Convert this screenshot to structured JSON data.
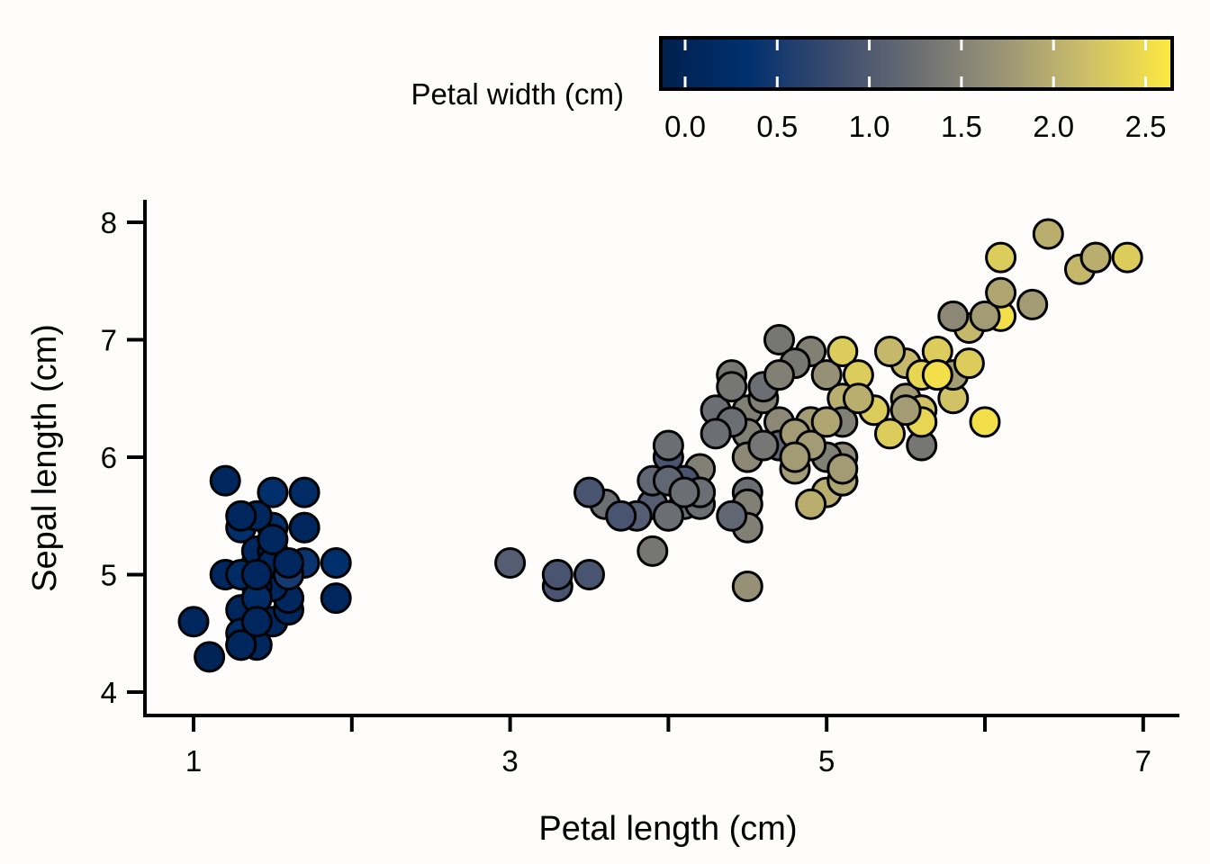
{
  "chart_data": {
    "type": "scatter",
    "xlabel": "Petal length (cm)",
    "ylabel": "Sepal length (cm)",
    "xlim": [
      0.7,
      7.3
    ],
    "ylim": [
      3.8,
      8.2
    ],
    "xticks": [
      1,
      2,
      3,
      4,
      5,
      6,
      7
    ],
    "xtick_labels": [
      "1",
      "",
      "3",
      "",
      "5",
      "",
      "7"
    ],
    "yticks": [
      4,
      5,
      6,
      7,
      8
    ],
    "ytick_labels": [
      "4",
      "5",
      "6",
      "7",
      "8"
    ],
    "grid": false,
    "color_scale": {
      "title": "Petal width (cm)",
      "min": 0.0,
      "max": 2.6,
      "ticks": [
        0.0,
        0.5,
        1.0,
        1.5,
        2.0,
        2.5
      ],
      "tick_labels": [
        "0.0",
        "0.5",
        "1.0",
        "1.5",
        "2.0",
        "2.5"
      ],
      "colors": [
        "#00204d",
        "#00306f",
        "#3a4a6e",
        "#6b6e73",
        "#9a9476",
        "#cdbf69",
        "#fde940"
      ],
      "placement": "top-right"
    },
    "x": [
      1.4,
      1.4,
      1.3,
      1.5,
      1.4,
      1.7,
      1.4,
      1.5,
      1.4,
      1.5,
      1.5,
      1.6,
      1.4,
      1.1,
      1.2,
      1.5,
      1.3,
      1.4,
      1.7,
      1.5,
      1.7,
      1.5,
      1.0,
      1.7,
      1.9,
      1.6,
      1.6,
      1.5,
      1.4,
      1.6,
      1.6,
      1.5,
      1.5,
      1.4,
      1.5,
      1.2,
      1.3,
      1.4,
      1.3,
      1.5,
      1.3,
      1.3,
      1.3,
      1.6,
      1.9,
      1.4,
      1.6,
      1.4,
      1.5,
      1.4,
      4.7,
      4.5,
      4.9,
      4.0,
      4.6,
      4.5,
      4.7,
      3.3,
      4.6,
      3.9,
      3.5,
      4.2,
      4.0,
      4.7,
      3.6,
      4.4,
      4.5,
      4.1,
      4.5,
      3.9,
      4.8,
      4.0,
      4.9,
      4.7,
      4.3,
      4.4,
      4.8,
      5.0,
      4.5,
      3.5,
      3.8,
      3.7,
      3.9,
      5.1,
      4.5,
      4.5,
      4.7,
      4.4,
      4.1,
      4.0,
      4.4,
      4.6,
      4.0,
      3.3,
      4.2,
      4.2,
      4.2,
      4.3,
      3.0,
      4.1,
      6.0,
      5.1,
      5.9,
      5.6,
      5.8,
      6.6,
      4.5,
      6.3,
      5.8,
      6.1,
      5.1,
      5.3,
      5.5,
      5.0,
      5.1,
      5.3,
      5.5,
      6.7,
      6.9,
      5.0,
      5.7,
      4.9,
      6.7,
      4.9,
      5.7,
      6.0,
      4.8,
      4.9,
      5.6,
      5.8,
      6.1,
      6.4,
      5.6,
      5.1,
      5.6,
      6.1,
      5.6,
      5.5,
      4.8,
      5.4,
      5.6,
      5.1,
      5.1,
      5.9,
      5.7,
      5.2,
      5.0,
      5.2,
      5.4,
      5.1
    ],
    "y": [
      5.1,
      4.9,
      4.7,
      4.6,
      5.0,
      5.4,
      4.6,
      5.0,
      4.4,
      4.9,
      5.4,
      4.8,
      4.8,
      4.3,
      5.8,
      5.7,
      5.4,
      5.1,
      5.7,
      5.1,
      5.4,
      5.1,
      4.6,
      5.1,
      4.8,
      5.0,
      5.0,
      5.2,
      5.2,
      4.7,
      4.8,
      5.4,
      5.2,
      5.5,
      4.9,
      5.0,
      5.5,
      4.9,
      4.4,
      5.1,
      5.0,
      4.5,
      4.4,
      5.0,
      5.1,
      4.8,
      5.1,
      4.6,
      5.3,
      5.0,
      7.0,
      6.4,
      6.9,
      5.5,
      6.5,
      5.7,
      6.3,
      4.9,
      6.6,
      5.2,
      5.0,
      5.9,
      6.0,
      6.1,
      5.6,
      6.7,
      5.6,
      5.8,
      6.2,
      5.6,
      5.9,
      6.1,
      6.3,
      6.1,
      6.4,
      6.6,
      6.8,
      6.7,
      6.0,
      5.7,
      5.5,
      5.5,
      5.8,
      6.0,
      5.4,
      6.0,
      6.7,
      6.3,
      5.6,
      5.5,
      5.5,
      6.1,
      5.8,
      5.0,
      5.6,
      5.7,
      5.7,
      6.2,
      5.1,
      5.7,
      6.3,
      5.8,
      7.1,
      6.3,
      6.5,
      7.6,
      4.9,
      7.3,
      6.7,
      7.2,
      6.5,
      6.4,
      6.8,
      5.7,
      5.8,
      6.4,
      6.5,
      7.7,
      7.7,
      6.0,
      6.9,
      5.6,
      7.7,
      6.3,
      6.7,
      7.2,
      6.2,
      6.1,
      6.4,
      7.2,
      7.4,
      7.9,
      6.4,
      6.3,
      6.1,
      7.7,
      6.3,
      6.4,
      6.0,
      6.9,
      6.7,
      6.9,
      5.8,
      6.8,
      6.7,
      6.7,
      6.3,
      6.5,
      6.2,
      5.9
    ],
    "color_values": [
      0.2,
      0.2,
      0.2,
      0.2,
      0.2,
      0.4,
      0.3,
      0.2,
      0.2,
      0.1,
      0.2,
      0.2,
      0.1,
      0.1,
      0.2,
      0.4,
      0.4,
      0.3,
      0.3,
      0.3,
      0.2,
      0.4,
      0.2,
      0.5,
      0.2,
      0.2,
      0.4,
      0.2,
      0.2,
      0.2,
      0.2,
      0.4,
      0.1,
      0.2,
      0.2,
      0.2,
      0.2,
      0.1,
      0.2,
      0.2,
      0.3,
      0.3,
      0.2,
      0.6,
      0.4,
      0.3,
      0.2,
      0.2,
      0.2,
      0.2,
      1.4,
      1.5,
      1.5,
      1.3,
      1.5,
      1.3,
      1.6,
      1.0,
      1.3,
      1.4,
      1.0,
      1.5,
      1.0,
      1.4,
      1.3,
      1.4,
      1.5,
      1.0,
      1.5,
      1.1,
      1.8,
      1.3,
      1.5,
      1.2,
      1.3,
      1.4,
      1.4,
      1.7,
      1.5,
      1.0,
      1.1,
      1.0,
      1.2,
      1.6,
      1.5,
      1.6,
      1.5,
      1.3,
      1.3,
      1.3,
      1.2,
      1.4,
      1.2,
      1.0,
      1.3,
      1.2,
      1.3,
      1.3,
      1.1,
      1.3,
      2.5,
      1.9,
      2.1,
      1.8,
      2.2,
      2.1,
      1.7,
      1.8,
      1.8,
      2.5,
      2.0,
      1.9,
      2.1,
      2.0,
      2.4,
      2.3,
      1.8,
      2.2,
      2.3,
      1.5,
      2.3,
      2.0,
      2.0,
      1.8,
      2.1,
      1.8,
      1.8,
      1.8,
      2.1,
      1.6,
      1.9,
      2.0,
      2.2,
      1.5,
      1.4,
      2.3,
      2.4,
      1.8,
      1.8,
      2.1,
      2.4,
      2.3,
      1.9,
      2.3,
      2.5,
      2.3,
      1.9,
      2.0,
      2.3,
      1.8
    ]
  }
}
